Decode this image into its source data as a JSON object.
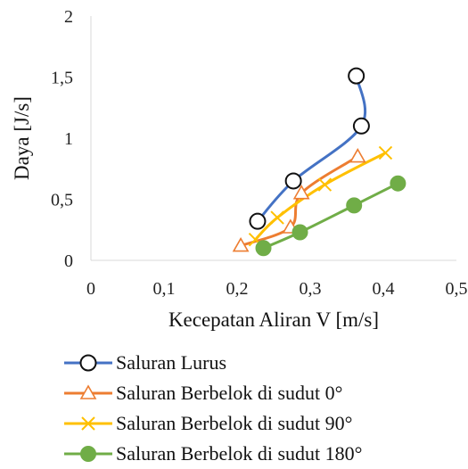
{
  "chart_data": {
    "type": "scatter",
    "mode": "lines+markers",
    "xlabel": "Kecepatan Aliran V [m/s]",
    "ylabel": "Daya [J/s]",
    "xlim": [
      0,
      0.5
    ],
    "ylim": [
      0,
      2
    ],
    "xticks": [
      "0",
      "0,1",
      "0,2",
      "0,3",
      "0,4",
      "0,5"
    ],
    "yticks": [
      "0",
      "0,5",
      "1",
      "1,5",
      "2"
    ],
    "grid": false,
    "legend_position": "bottom",
    "series": [
      {
        "name": "Saluran Lurus",
        "color": "#4472C4",
        "marker": "circle-open",
        "points": [
          [
            0.228,
            0.32
          ],
          [
            0.277,
            0.65
          ],
          [
            0.37,
            1.1
          ],
          [
            0.363,
            1.51
          ]
        ]
      },
      {
        "name": "Saluran Berbelok di sudut 0°",
        "color": "#ED7D31",
        "marker": "triangle-open",
        "points": [
          [
            0.205,
            0.12
          ],
          [
            0.273,
            0.27
          ],
          [
            0.288,
            0.55
          ],
          [
            0.365,
            0.85
          ]
        ]
      },
      {
        "name": "Saluran Berbelok di sudut 90°",
        "color": "#FFC000",
        "marker": "x",
        "points": [
          [
            0.225,
            0.17
          ],
          [
            0.255,
            0.35
          ],
          [
            0.32,
            0.62
          ],
          [
            0.403,
            0.88
          ]
        ]
      },
      {
        "name": "Saluran Berbelok di sudut 180°",
        "color": "#70AD47",
        "marker": "circle-filled",
        "points": [
          [
            0.236,
            0.1
          ],
          [
            0.286,
            0.23
          ],
          [
            0.36,
            0.45
          ],
          [
            0.42,
            0.63
          ]
        ]
      }
    ]
  }
}
